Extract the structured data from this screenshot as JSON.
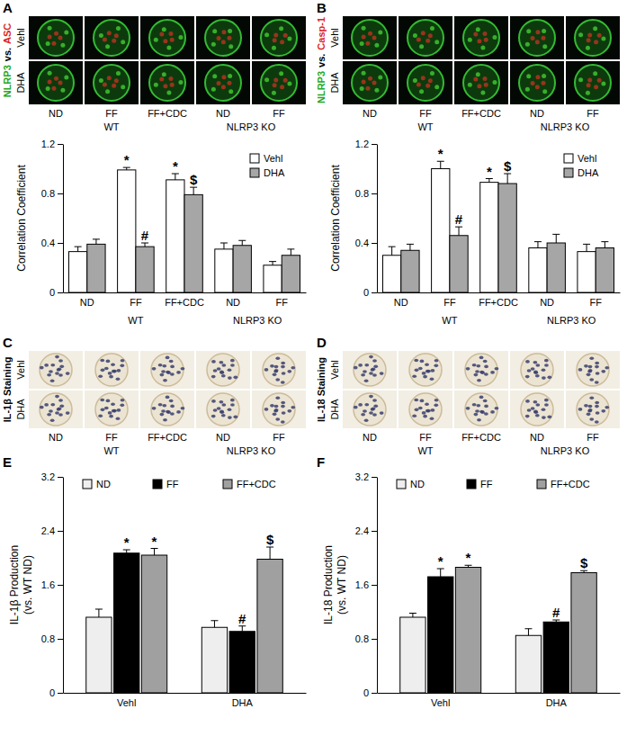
{
  "image_panels": [
    {
      "panel_label": "A",
      "type": "fluorescence",
      "stain_label": [
        {
          "text": "NLRP3",
          "color": "#22aa22"
        },
        {
          "text": "vs.",
          "color": "#000000"
        },
        {
          "text": "ASC",
          "color": "#dd2222"
        }
      ],
      "rows": [
        "Vehl",
        "DHA"
      ],
      "columns": [
        "ND",
        "FF",
        "FF+CDC",
        "ND",
        "FF"
      ],
      "column_groups": [
        "WT",
        "WT",
        "WT",
        "NLRP3 KO",
        "NLRP3 KO"
      ]
    },
    {
      "panel_label": "B",
      "type": "fluorescence",
      "stain_label": [
        {
          "text": "NLRP3",
          "color": "#22aa22"
        },
        {
          "text": "vs.",
          "color": "#000000"
        },
        {
          "text": "Casp-1",
          "color": "#dd2222"
        }
      ],
      "rows": [
        "Vehl",
        "DHA"
      ],
      "columns": [
        "ND",
        "FF",
        "FF+CDC",
        "ND",
        "FF"
      ],
      "column_groups": [
        "WT",
        "WT",
        "WT",
        "NLRP3 KO",
        "NLRP3 KO"
      ]
    },
    {
      "panel_label": "C",
      "type": "brightfield",
      "stain_label": [
        {
          "text": "IL-1β Staining",
          "color": "#000000"
        }
      ],
      "rows": [
        "Vehl",
        "DHA"
      ],
      "columns": [
        "ND",
        "FF",
        "FF+CDC",
        "ND",
        "FF"
      ],
      "column_groups": [
        "WT",
        "WT",
        "WT",
        "NLRP3 KO",
        "NLRP3 KO"
      ]
    },
    {
      "panel_label": "D",
      "type": "brightfield",
      "stain_label": [
        {
          "text": "IL-18 Staining",
          "color": "#000000"
        }
      ],
      "rows": [
        "Vehl",
        "DHA"
      ],
      "columns": [
        "ND",
        "FF",
        "FF+CDC",
        "ND",
        "FF"
      ],
      "column_groups": [
        "WT",
        "WT",
        "WT",
        "NLRP3 KO",
        "NLRP3 KO"
      ]
    }
  ],
  "chart_data": [
    {
      "type": "bar",
      "ylabel": [
        "Correlation Coefficient"
      ],
      "categories": [
        "ND",
        "FF",
        "FF+CDC",
        "ND",
        "FF"
      ],
      "category_groups": [
        "WT",
        "WT",
        "WT",
        "NLRP3 KO",
        "NLRP3 KO"
      ],
      "ylim": [
        0,
        1.2
      ],
      "yticks": [
        0,
        0.4,
        0.8,
        1.2
      ],
      "legend": "upper right",
      "series": [
        {
          "name": "Vehl",
          "color": "#ffffff",
          "values": [
            0.33,
            0.99,
            0.91,
            0.35,
            0.22
          ],
          "errors": [
            0.04,
            0.02,
            0.05,
            0.05,
            0.03
          ],
          "significance": [
            null,
            "*",
            "*",
            null,
            null
          ]
        },
        {
          "name": "DHA",
          "color": "#a6a6a6",
          "values": [
            0.39,
            0.37,
            0.79,
            0.38,
            0.3
          ],
          "errors": [
            0.04,
            0.03,
            0.06,
            0.04,
            0.05
          ],
          "significance": [
            null,
            "#",
            "$",
            null,
            null
          ]
        }
      ]
    },
    {
      "type": "bar",
      "ylabel": [
        "Correlation Coefficient"
      ],
      "categories": [
        "ND",
        "FF",
        "FF+CDC",
        "ND",
        "FF"
      ],
      "category_groups": [
        "WT",
        "WT",
        "WT",
        "NLRP3 KO",
        "NLRP3 KO"
      ],
      "ylim": [
        0,
        1.2
      ],
      "yticks": [
        0,
        0.4,
        0.8,
        1.2
      ],
      "legend": "upper right",
      "series": [
        {
          "name": "Vehl",
          "color": "#ffffff",
          "values": [
            0.3,
            1.0,
            0.89,
            0.36,
            0.33
          ],
          "errors": [
            0.07,
            0.06,
            0.03,
            0.05,
            0.06
          ],
          "significance": [
            null,
            "*",
            "*",
            null,
            null
          ]
        },
        {
          "name": "DHA",
          "color": "#a6a6a6",
          "values": [
            0.34,
            0.46,
            0.88,
            0.4,
            0.36
          ],
          "errors": [
            0.05,
            0.07,
            0.08,
            0.07,
            0.05
          ],
          "significance": [
            null,
            "#",
            "$",
            null,
            null
          ]
        }
      ]
    },
    {
      "type": "bar",
      "panel_label": "E",
      "ylabel": [
        "IL-1β Production",
        "(vs. WT ND)"
      ],
      "categories": [
        "Vehl",
        "DHA"
      ],
      "ylim": [
        0,
        3.2
      ],
      "yticks": [
        0,
        0.8,
        1.6,
        2.4,
        3.2
      ],
      "legend": "top",
      "series": [
        {
          "name": "ND",
          "color": "#eeeeee",
          "values": [
            1.12,
            0.97
          ],
          "errors": [
            0.12,
            0.1
          ],
          "significance": [
            null,
            null
          ]
        },
        {
          "name": "FF",
          "color": "#000000",
          "values": [
            2.07,
            0.91
          ],
          "errors": [
            0.05,
            0.08
          ],
          "significance": [
            "*",
            "#"
          ]
        },
        {
          "name": "FF+CDC",
          "color": "#a0a0a0",
          "values": [
            2.04,
            1.98
          ],
          "errors": [
            0.1,
            0.18
          ],
          "significance": [
            "*",
            "$"
          ]
        }
      ]
    },
    {
      "type": "bar",
      "panel_label": "F",
      "ylabel": [
        "IL-18 Production",
        "(vs. WT ND)"
      ],
      "categories": [
        "Vehl",
        "DHA"
      ],
      "ylim": [
        0,
        3.2
      ],
      "yticks": [
        0,
        0.8,
        1.6,
        2.4,
        3.2
      ],
      "legend": "top",
      "series": [
        {
          "name": "ND",
          "color": "#eeeeee",
          "values": [
            1.12,
            0.85
          ],
          "errors": [
            0.06,
            0.1
          ],
          "significance": [
            null,
            null
          ]
        },
        {
          "name": "FF",
          "color": "#000000",
          "values": [
            1.72,
            1.05
          ],
          "errors": [
            0.12,
            0.03
          ],
          "significance": [
            "*",
            "#"
          ]
        },
        {
          "name": "FF+CDC",
          "color": "#a0a0a0",
          "values": [
            1.86,
            1.78
          ],
          "errors": [
            0.03,
            0.03
          ],
          "significance": [
            "*",
            "$"
          ]
        }
      ]
    }
  ]
}
